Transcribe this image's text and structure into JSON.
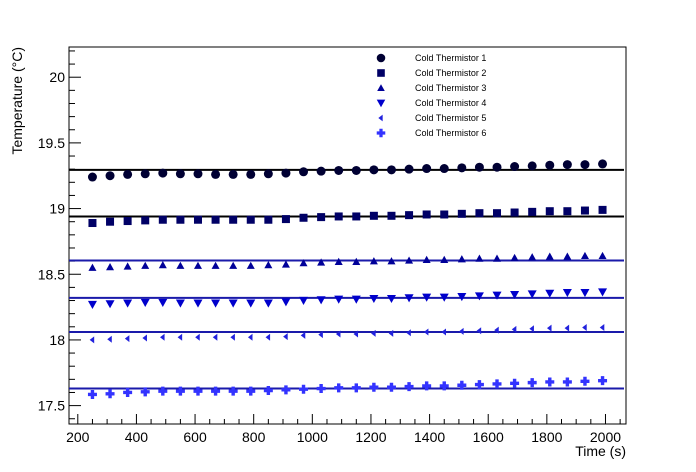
{
  "chart_data": {
    "type": "scatter",
    "xlabel": "Time (s)",
    "ylabel": "Temperature (°C)",
    "xlim": [
      170,
      2070
    ],
    "ylim": [
      17.36,
      20.23
    ],
    "x_ticks": [
      200,
      400,
      600,
      800,
      1000,
      1200,
      1400,
      1600,
      1800,
      2000
    ],
    "x_tick_labels": [
      "200",
      "400",
      "600",
      "800",
      "1000",
      "1200",
      "1400",
      "1600",
      "1800",
      "2000"
    ],
    "y_ticks": [
      17.5,
      18,
      18.5,
      19,
      19.5,
      20
    ],
    "y_tick_labels": [
      "17.5",
      "18",
      "18.5",
      "19",
      "19.5",
      "20"
    ],
    "legend_position": "top-right",
    "x": [
      250,
      310,
      370,
      430,
      490,
      550,
      610,
      670,
      730,
      790,
      850,
      910,
      970,
      1030,
      1090,
      1150,
      1210,
      1270,
      1330,
      1390,
      1450,
      1510,
      1570,
      1630,
      1690,
      1750,
      1810,
      1870,
      1930,
      1990
    ],
    "series": [
      {
        "name": "Cold Thermistor 1",
        "marker": "circle",
        "color": "#000033",
        "fit_y": 19.295,
        "values": [
          19.24,
          19.25,
          19.26,
          19.265,
          19.27,
          19.265,
          19.265,
          19.26,
          19.26,
          19.26,
          19.265,
          19.27,
          19.28,
          19.285,
          19.29,
          19.29,
          19.295,
          19.295,
          19.3,
          19.305,
          19.305,
          19.31,
          19.315,
          19.315,
          19.32,
          19.325,
          19.33,
          19.335,
          19.335,
          19.34
        ]
      },
      {
        "name": "Cold Thermistor 2",
        "marker": "square",
        "color": "#000066",
        "fit_y": 18.94,
        "values": [
          18.89,
          18.9,
          18.905,
          18.91,
          18.915,
          18.915,
          18.915,
          18.915,
          18.915,
          18.915,
          18.915,
          18.92,
          18.93,
          18.935,
          18.94,
          18.94,
          18.945,
          18.945,
          18.95,
          18.955,
          18.955,
          18.96,
          18.965,
          18.965,
          18.97,
          18.975,
          18.98,
          18.98,
          18.985,
          18.99
        ]
      },
      {
        "name": "Cold Thermistor 3",
        "marker": "triangle-up",
        "color": "#000099",
        "fit_y": 18.605,
        "values": [
          18.55,
          18.555,
          18.56,
          18.565,
          18.57,
          18.565,
          18.565,
          18.565,
          18.565,
          18.565,
          18.57,
          18.575,
          18.585,
          18.59,
          18.595,
          18.595,
          18.6,
          18.6,
          18.605,
          18.61,
          18.61,
          18.615,
          18.62,
          18.62,
          18.625,
          18.63,
          18.635,
          18.635,
          18.64,
          18.64
        ]
      },
      {
        "name": "Cold Thermistor 4",
        "marker": "triangle-down",
        "color": "#0000cc",
        "fit_y": 18.32,
        "values": [
          18.27,
          18.275,
          18.28,
          18.285,
          18.285,
          18.28,
          18.28,
          18.28,
          18.28,
          18.28,
          18.28,
          18.29,
          18.3,
          18.305,
          18.31,
          18.31,
          18.315,
          18.315,
          18.32,
          18.325,
          18.325,
          18.33,
          18.335,
          18.34,
          18.345,
          18.35,
          18.355,
          18.36,
          18.36,
          18.365
        ]
      },
      {
        "name": "Cold Thermistor 5",
        "marker": "triangle-left",
        "color": "#2222dd",
        "fit_y": 18.06,
        "values": [
          18.0,
          18.005,
          18.01,
          18.015,
          18.02,
          18.02,
          18.02,
          18.02,
          18.02,
          18.02,
          18.02,
          18.025,
          18.035,
          18.04,
          18.045,
          18.045,
          18.05,
          18.05,
          18.055,
          18.06,
          18.06,
          18.065,
          18.07,
          18.075,
          18.08,
          18.085,
          18.09,
          18.09,
          18.095,
          18.095
        ]
      },
      {
        "name": "Cold Thermistor 6",
        "marker": "cross",
        "color": "#3333ff",
        "fit_y": 17.63,
        "values": [
          17.585,
          17.59,
          17.6,
          17.605,
          17.61,
          17.61,
          17.61,
          17.61,
          17.61,
          17.61,
          17.615,
          17.62,
          17.625,
          17.63,
          17.635,
          17.635,
          17.64,
          17.64,
          17.645,
          17.65,
          17.65,
          17.655,
          17.66,
          17.665,
          17.67,
          17.675,
          17.68,
          17.68,
          17.685,
          17.69
        ]
      }
    ]
  },
  "colors": {
    "fit_line_black": "#000000",
    "fit_line_blue": "#1a1aaa"
  }
}
